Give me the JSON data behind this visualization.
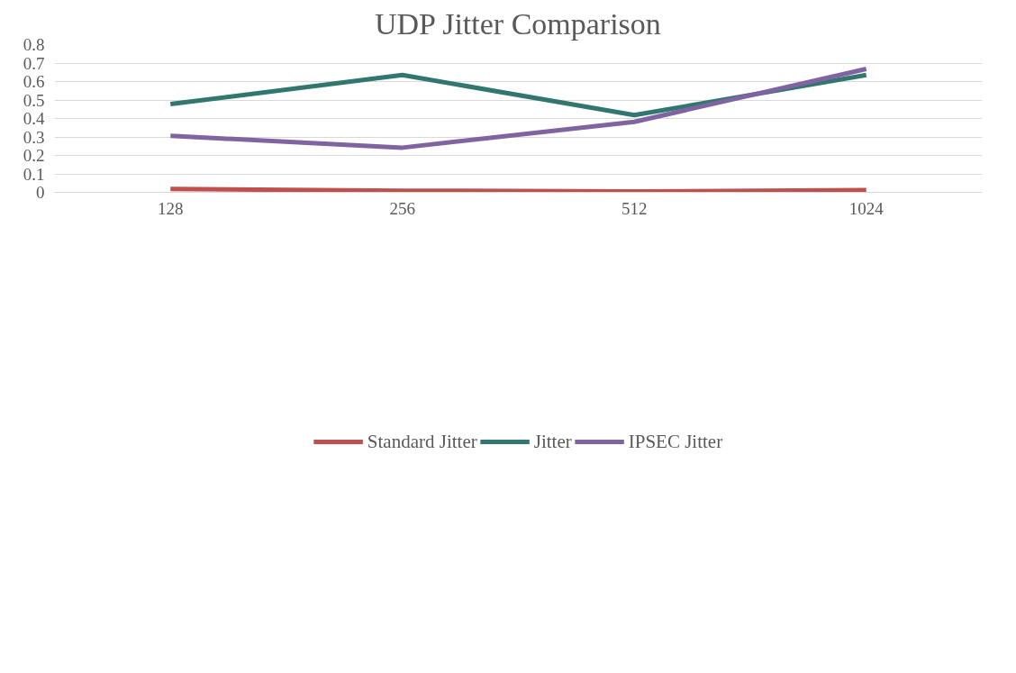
{
  "chart_data": {
    "type": "line",
    "title": "UDP Jitter Comparison",
    "categories": [
      "128",
      "256",
      "512",
      "1024"
    ],
    "series": [
      {
        "name": "Standard Jitter",
        "color": "#c0504d",
        "values": [
          0.018,
          0.009,
          0.005,
          0.012
        ]
      },
      {
        "name": "Jitter",
        "color": "#31776f",
        "values": [
          0.478,
          0.635,
          0.418,
          0.635
        ]
      },
      {
        "name": "IPSEC Jitter",
        "color": "#8064a2",
        "values": [
          0.306,
          0.242,
          0.382,
          0.668
        ]
      }
    ],
    "ylim": [
      0,
      0.8
    ],
    "yticks": [
      0,
      0.1,
      0.2,
      0.3,
      0.4,
      0.5,
      0.6,
      0.7,
      0.8
    ],
    "grid": "y",
    "legend": "bottom",
    "marker": "none",
    "line_style": "solid"
  }
}
